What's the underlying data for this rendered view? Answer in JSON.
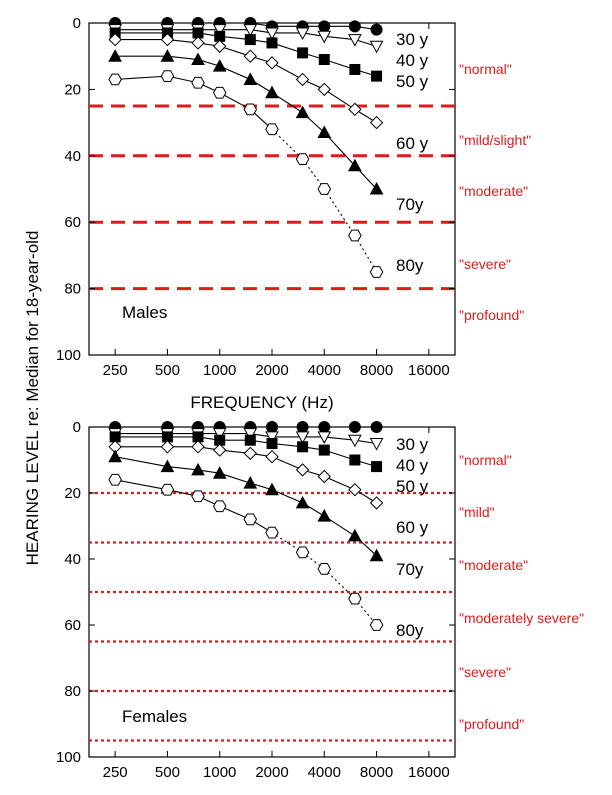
{
  "ylabel": "HEARING LEVEL re: Median for 18-year-old",
  "colors": {
    "axis": "#000000",
    "category": "#dd1c1c"
  },
  "chart_data": [
    {
      "type": "line",
      "panel": "Males",
      "panel_label": "Males",
      "xlabel": "FREQUENCY (Hz)",
      "ylabel": "HEARING LEVEL re: Median for 18-year-old",
      "x_scale": "log2",
      "x_ticks": [
        250,
        500,
        1000,
        2000,
        4000,
        8000,
        16000
      ],
      "x_tick_labels": [
        "250",
        "500",
        "1000",
        "2000",
        "4000",
        "8000",
        "16000"
      ],
      "ylim": [
        0,
        100
      ],
      "y_inverted": true,
      "y_ticks": [
        0,
        20,
        40,
        60,
        80,
        100
      ],
      "y_tick_labels": [
        "0",
        "20",
        "40",
        "60",
        "80",
        "100"
      ],
      "threshold_style": "dashed",
      "thresholds": [
        25,
        40,
        60,
        80
      ],
      "categories": [
        "\"normal\"",
        "\"mild/slight\"",
        "\"moderate\"",
        "\"severe\"",
        "\"profound\""
      ],
      "series": [
        {
          "name": "30 y",
          "marker": "circle",
          "fill": "black",
          "x": [
            250,
            500,
            750,
            1000,
            1500,
            2000,
            3000,
            4000,
            6000,
            8000
          ],
          "values": [
            0,
            0,
            0,
            0,
            0,
            1,
            1,
            1,
            1,
            2
          ],
          "dotted_from": null
        },
        {
          "name": "40 y",
          "marker": "triangle-down",
          "fill": "white",
          "x": [
            250,
            500,
            750,
            1000,
            1500,
            2000,
            3000,
            4000,
            6000,
            8000
          ],
          "values": [
            2,
            2,
            2,
            2,
            2,
            3,
            3,
            4,
            5,
            7
          ],
          "dotted_from": null
        },
        {
          "name": "50 y",
          "marker": "square",
          "fill": "black",
          "x": [
            250,
            500,
            750,
            1000,
            1500,
            2000,
            3000,
            4000,
            6000,
            8000
          ],
          "values": [
            3,
            3,
            3,
            4,
            5,
            6,
            9,
            11,
            14,
            16
          ],
          "dotted_from": null
        },
        {
          "name": "60 y",
          "marker": "diamond",
          "fill": "white",
          "x": [
            250,
            500,
            750,
            1000,
            1500,
            2000,
            3000,
            4000,
            6000,
            8000
          ],
          "values": [
            5,
            5,
            6,
            7,
            10,
            12,
            17,
            20,
            26,
            30
          ],
          "dotted_from": null
        },
        {
          "name": "70y",
          "marker": "triangle-up",
          "fill": "black",
          "x": [
            250,
            500,
            750,
            1000,
            1500,
            2000,
            3000,
            4000,
            6000,
            8000
          ],
          "values": [
            10,
            10,
            11,
            13,
            17,
            21,
            27,
            33,
            43,
            50
          ],
          "dotted_from": null
        },
        {
          "name": "80y",
          "marker": "hexagon",
          "fill": "white",
          "x": [
            250,
            500,
            750,
            1000,
            1500,
            2000,
            3000,
            4000,
            6000,
            8000
          ],
          "values": [
            17,
            16,
            18,
            21,
            26,
            32,
            41,
            50,
            64,
            75
          ],
          "dotted_from": 6
        }
      ]
    },
    {
      "type": "line",
      "panel": "Females",
      "panel_label": "Females",
      "xlabel": "",
      "ylabel": "HEARING LEVEL re: Median for 18-year-old",
      "x_scale": "log2",
      "x_ticks": [
        250,
        500,
        1000,
        2000,
        4000,
        8000,
        16000
      ],
      "x_tick_labels": [
        "250",
        "500",
        "1000",
        "2000",
        "4000",
        "8000",
        "16000"
      ],
      "ylim": [
        0,
        100
      ],
      "y_inverted": true,
      "y_ticks": [
        0,
        20,
        40,
        60,
        80,
        100
      ],
      "y_tick_labels": [
        "0",
        "20",
        "40",
        "60",
        "80",
        "100"
      ],
      "threshold_style": "dotted",
      "thresholds": [
        20,
        35,
        50,
        65,
        80,
        95
      ],
      "categories": [
        "\"normal\"",
        "\"mild\"",
        "\"moderate\"",
        "\"moderately severe\"",
        "\"severe\"",
        "\"profound\""
      ],
      "series": [
        {
          "name": "30 y",
          "marker": "circle",
          "fill": "black",
          "x": [
            250,
            500,
            750,
            1000,
            1500,
            2000,
            3000,
            4000,
            6000,
            8000
          ],
          "values": [
            0,
            0,
            0,
            0,
            0,
            0,
            0,
            0,
            0,
            0
          ],
          "dotted_from": null
        },
        {
          "name": "40 y",
          "marker": "triangle-down",
          "fill": "white",
          "x": [
            250,
            500,
            750,
            1000,
            1500,
            2000,
            3000,
            4000,
            6000,
            8000
          ],
          "values": [
            2,
            2,
            2,
            2,
            2,
            3,
            3,
            3,
            4,
            5
          ],
          "dotted_from": null
        },
        {
          "name": "50 y",
          "marker": "square",
          "fill": "black",
          "x": [
            250,
            500,
            750,
            1000,
            1500,
            2000,
            3000,
            4000,
            6000,
            8000
          ],
          "values": [
            3,
            3,
            3,
            4,
            4,
            5,
            6,
            7,
            10,
            12
          ],
          "dotted_from": null
        },
        {
          "name": "60 y",
          "marker": "diamond",
          "fill": "white",
          "x": [
            250,
            500,
            750,
            1000,
            1500,
            2000,
            3000,
            4000,
            6000,
            8000
          ],
          "values": [
            6,
            6,
            6,
            7,
            8,
            9,
            13,
            15,
            19,
            23
          ],
          "dotted_from": null
        },
        {
          "name": "70y",
          "marker": "triangle-up",
          "fill": "black",
          "x": [
            250,
            500,
            750,
            1000,
            1500,
            2000,
            3000,
            4000,
            6000,
            8000
          ],
          "values": [
            9,
            12,
            13,
            14,
            17,
            19,
            23,
            27,
            33,
            39
          ],
          "dotted_from": null
        },
        {
          "name": "80y",
          "marker": "hexagon",
          "fill": "white",
          "x": [
            250,
            500,
            750,
            1000,
            1500,
            2000,
            3000,
            4000,
            6000,
            8000
          ],
          "values": [
            16,
            19,
            21,
            24,
            28,
            32,
            38,
            43,
            52,
            60
          ],
          "dotted_from": 6
        }
      ]
    }
  ]
}
